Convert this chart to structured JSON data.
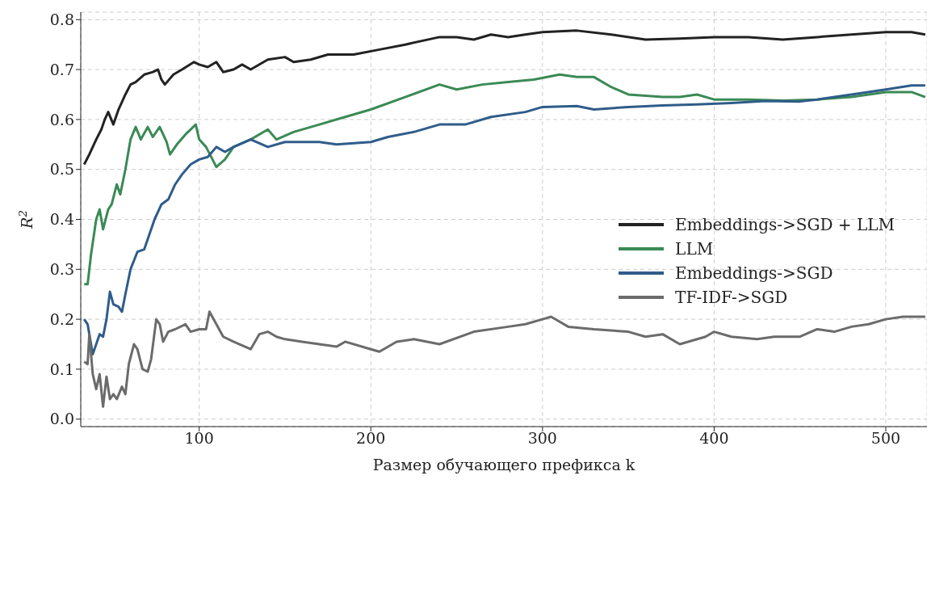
{
  "chart_data": {
    "type": "line",
    "xlabel": "Размер обучающего префикса k",
    "ylabel": "R$^{2}$",
    "xlim": [
      31,
      524
    ],
    "xticks": [
      100,
      200,
      300,
      400,
      500
    ],
    "ylim": [
      -0.015,
      0.815
    ],
    "yticks": [
      {
        "value": 0,
        "label": "0.0"
      },
      {
        "value": 0.1,
        "label": "0.1"
      },
      {
        "value": 0.2,
        "label": "0.2"
      },
      {
        "value": 0.3,
        "label": "0.3"
      },
      {
        "value": 0.4,
        "label": "0.4"
      },
      {
        "value": 0.5,
        "label": "0.5"
      },
      {
        "value": 0.6,
        "label": "0.6"
      },
      {
        "value": 0.7,
        "label": "0.7"
      },
      {
        "value": 0.8,
        "label": "0.8"
      }
    ],
    "grid": true,
    "legend": "right",
    "line_style": "solid",
    "marker": "none",
    "series": [
      {
        "name": "Embeddings->SGD + LLM",
        "color": "#222222",
        "x": [
          33,
          36,
          40,
          43,
          45,
          47,
          50,
          53,
          57,
          60,
          63,
          68,
          73,
          76,
          78,
          80,
          85,
          90,
          97,
          100,
          105,
          110,
          114,
          120,
          125,
          130,
          140,
          150,
          155,
          165,
          175,
          190,
          205,
          220,
          240,
          250,
          260,
          270,
          280,
          290,
          300,
          320,
          340,
          360,
          380,
          400,
          420,
          440,
          460,
          480,
          500,
          515,
          523
        ],
        "values": [
          0.51,
          0.53,
          0.56,
          0.58,
          0.6,
          0.615,
          0.59,
          0.62,
          0.65,
          0.67,
          0.675,
          0.69,
          0.695,
          0.7,
          0.68,
          0.67,
          0.69,
          0.7,
          0.715,
          0.71,
          0.705,
          0.715,
          0.695,
          0.7,
          0.71,
          0.7,
          0.72,
          0.725,
          0.715,
          0.72,
          0.73,
          0.73,
          0.74,
          0.75,
          0.765,
          0.765,
          0.76,
          0.77,
          0.765,
          0.77,
          0.775,
          0.778,
          0.77,
          0.76,
          0.762,
          0.765,
          0.765,
          0.76,
          0.765,
          0.77,
          0.775,
          0.775,
          0.77
        ]
      },
      {
        "name": "LLM",
        "color": "#3a8a55",
        "x": [
          33,
          35,
          37,
          40,
          42,
          44,
          47,
          49,
          52,
          54,
          57,
          60,
          63,
          66,
          70,
          73,
          77,
          81,
          83,
          87,
          92,
          98,
          100,
          104,
          110,
          115,
          120,
          130,
          140,
          145,
          155,
          170,
          185,
          200,
          220,
          240,
          250,
          265,
          280,
          295,
          310,
          320,
          330,
          340,
          350,
          370,
          380,
          390,
          400,
          420,
          440,
          460,
          480,
          500,
          515,
          523
        ],
        "values": [
          0.27,
          0.27,
          0.33,
          0.4,
          0.42,
          0.38,
          0.42,
          0.43,
          0.47,
          0.45,
          0.5,
          0.56,
          0.585,
          0.56,
          0.585,
          0.565,
          0.585,
          0.555,
          0.53,
          0.55,
          0.57,
          0.59,
          0.56,
          0.545,
          0.505,
          0.52,
          0.545,
          0.56,
          0.58,
          0.56,
          0.575,
          0.59,
          0.605,
          0.62,
          0.645,
          0.67,
          0.66,
          0.67,
          0.675,
          0.68,
          0.69,
          0.685,
          0.685,
          0.665,
          0.65,
          0.645,
          0.645,
          0.65,
          0.64,
          0.64,
          0.638,
          0.64,
          0.645,
          0.655,
          0.655,
          0.645
        ]
      },
      {
        "name": "Embeddings->SGD",
        "color": "#2f5c8a",
        "x": [
          33,
          35,
          38,
          42,
          44,
          46,
          48,
          50,
          53,
          55,
          57,
          60,
          64,
          68,
          71,
          74,
          78,
          82,
          86,
          90,
          95,
          100,
          105,
          110,
          115,
          120,
          130,
          140,
          150,
          170,
          180,
          200,
          210,
          225,
          240,
          255,
          270,
          290,
          300,
          320,
          330,
          350,
          370,
          390,
          410,
          430,
          450,
          460,
          480,
          500,
          515,
          523
        ],
        "values": [
          0.2,
          0.19,
          0.13,
          0.17,
          0.165,
          0.2,
          0.255,
          0.23,
          0.225,
          0.215,
          0.25,
          0.3,
          0.335,
          0.34,
          0.37,
          0.4,
          0.43,
          0.44,
          0.47,
          0.49,
          0.51,
          0.52,
          0.525,
          0.545,
          0.535,
          0.545,
          0.56,
          0.545,
          0.555,
          0.555,
          0.55,
          0.555,
          0.565,
          0.575,
          0.59,
          0.59,
          0.605,
          0.615,
          0.625,
          0.627,
          0.62,
          0.625,
          0.628,
          0.63,
          0.633,
          0.637,
          0.636,
          0.64,
          0.65,
          0.66,
          0.668,
          0.668
        ]
      },
      {
        "name": "TF-IDF->SGD",
        "color": "#6b6b6b",
        "x": [
          33,
          35,
          36,
          38,
          40,
          42,
          44,
          46,
          48,
          50,
          52,
          55,
          57,
          59,
          62,
          64,
          67,
          70,
          72,
          75,
          77,
          79,
          82,
          86,
          92,
          95,
          100,
          104,
          106,
          110,
          114,
          120,
          130,
          135,
          140,
          145,
          150,
          160,
          170,
          180,
          185,
          200,
          205,
          215,
          225,
          240,
          260,
          280,
          290,
          300,
          305,
          315,
          330,
          350,
          360,
          370,
          380,
          395,
          400,
          410,
          425,
          435,
          450,
          460,
          470,
          480,
          490,
          500,
          510,
          523
        ],
        "values": [
          0.115,
          0.11,
          0.17,
          0.09,
          0.06,
          0.09,
          0.025,
          0.085,
          0.04,
          0.05,
          0.04,
          0.065,
          0.05,
          0.11,
          0.15,
          0.14,
          0.1,
          0.095,
          0.12,
          0.2,
          0.19,
          0.155,
          0.175,
          0.18,
          0.19,
          0.175,
          0.18,
          0.18,
          0.215,
          0.19,
          0.165,
          0.155,
          0.14,
          0.17,
          0.175,
          0.165,
          0.16,
          0.155,
          0.15,
          0.145,
          0.155,
          0.14,
          0.135,
          0.155,
          0.16,
          0.15,
          0.175,
          0.185,
          0.19,
          0.2,
          0.205,
          0.185,
          0.18,
          0.175,
          0.165,
          0.17,
          0.15,
          0.165,
          0.175,
          0.165,
          0.16,
          0.165,
          0.165,
          0.18,
          0.175,
          0.185,
          0.19,
          0.2,
          0.205,
          0.205
        ]
      }
    ]
  }
}
